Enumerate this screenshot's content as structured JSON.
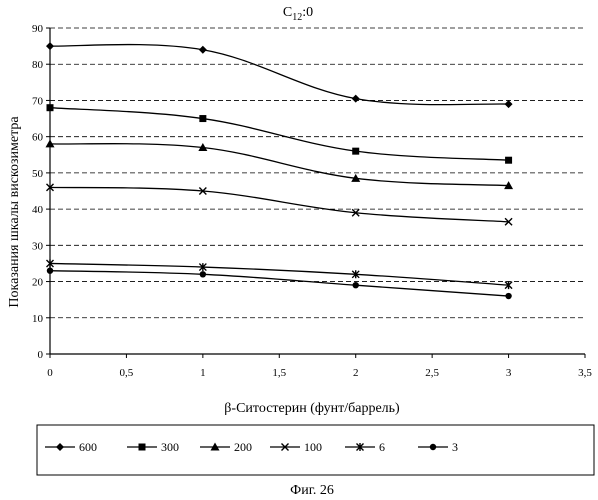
{
  "chart_data": {
    "type": "line",
    "title_prefix": "C",
    "title_sub": "12",
    "title_suffix": ":0",
    "xlabel": "β-Ситостерин (фунт/баррель)",
    "ylabel": "Показания шкалы вискозиметра",
    "xlim": [
      0,
      3.5
    ],
    "ylim": [
      0,
      90
    ],
    "xticks": [
      0,
      0.5,
      1,
      1.5,
      2,
      2.5,
      3,
      3.5
    ],
    "xtick_labels": [
      "0",
      "0,5",
      "1",
      "1,5",
      "2",
      "2,5",
      "3",
      "3,5"
    ],
    "yticks": [
      0,
      10,
      20,
      30,
      40,
      50,
      60,
      70,
      80,
      90
    ],
    "ytick_labels": [
      "0",
      "10",
      "20",
      "30",
      "40",
      "50",
      "60",
      "70",
      "80",
      "90"
    ],
    "x": [
      0,
      1,
      2,
      3
    ],
    "grid": "horizontal dashed",
    "legend_position": "bottom",
    "series": [
      {
        "name": "600",
        "marker": "diamond",
        "values": [
          85,
          84,
          70.5,
          69
        ]
      },
      {
        "name": "300",
        "marker": "square",
        "values": [
          68,
          65,
          56,
          53.5
        ]
      },
      {
        "name": "200",
        "marker": "triangle",
        "values": [
          58,
          57,
          48.5,
          46.5
        ]
      },
      {
        "name": "100",
        "marker": "x",
        "values": [
          46,
          45,
          39,
          36.5
        ]
      },
      {
        "name": "6",
        "marker": "star",
        "values": [
          25,
          24,
          22,
          19
        ]
      },
      {
        "name": "3",
        "marker": "circle",
        "values": [
          23,
          22,
          19,
          16
        ]
      }
    ]
  },
  "caption": "Фиг. 26"
}
